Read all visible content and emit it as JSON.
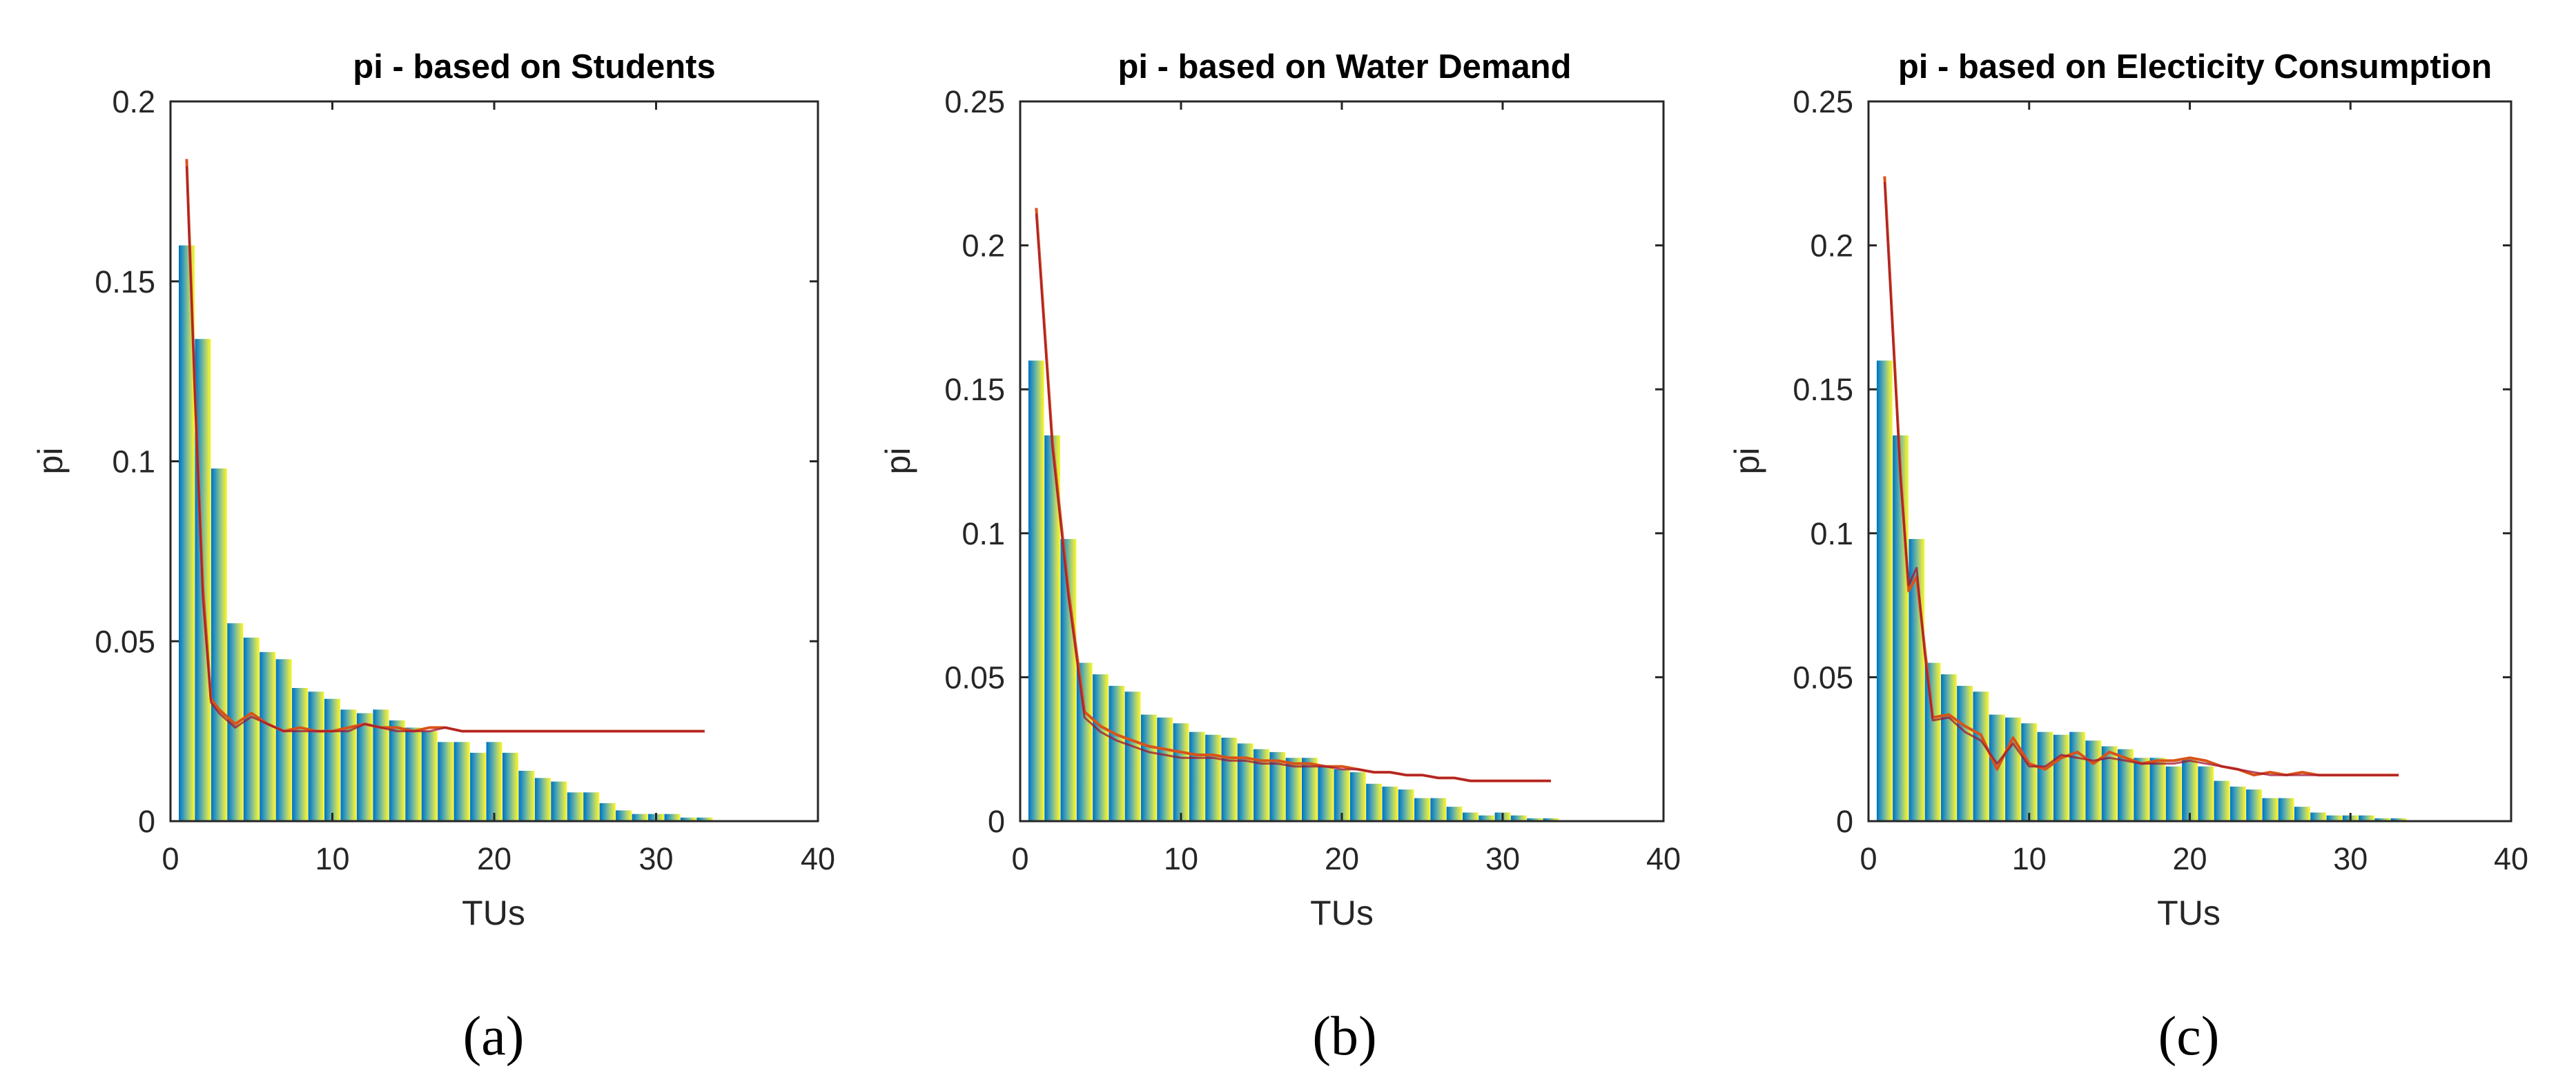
{
  "colors": {
    "bar_shades": [
      "#0072bd",
      "#1a87bf",
      "#3d9cb8",
      "#63b0a4",
      "#8cc38a",
      "#b6d56a",
      "#dde648",
      "#f9f727"
    ],
    "line": "#d95319",
    "line_alt": "#a2142f",
    "axis": "#262626"
  },
  "chart_data": [
    {
      "type": "bar",
      "title": "pi - based on Students",
      "xlabel": "TUs",
      "ylabel": "pi",
      "caption": "(a)",
      "xlim": [
        0,
        40
      ],
      "ylim": [
        0,
        0.2
      ],
      "xticks": [
        0,
        10,
        20,
        30,
        40
      ],
      "yticks": [
        0,
        0.05,
        0.1,
        0.15,
        0.2
      ],
      "ytick_labels": [
        "0",
        "0.05",
        "0.1",
        "0.15",
        "0.2"
      ],
      "x": [
        1,
        2,
        3,
        4,
        5,
        6,
        7,
        8,
        9,
        10,
        11,
        12,
        13,
        14,
        15,
        16,
        17,
        18,
        19,
        20,
        21,
        22,
        23,
        24,
        25,
        26,
        27,
        28,
        29,
        30,
        31,
        32,
        33
      ],
      "values": [
        0.16,
        0.134,
        0.098,
        0.055,
        0.051,
        0.047,
        0.045,
        0.037,
        0.036,
        0.034,
        0.031,
        0.03,
        0.031,
        0.028,
        0.026,
        0.025,
        0.022,
        0.022,
        0.019,
        0.022,
        0.019,
        0.014,
        0.012,
        0.011,
        0.008,
        0.008,
        0.005,
        0.003,
        0.002,
        0.002,
        0.002,
        0.001,
        0.001
      ],
      "series": [
        {
          "name": "line1",
          "x": [
            1,
            1.5,
            2,
            2.5,
            3,
            4,
            5,
            6,
            7,
            8,
            9,
            10,
            11,
            12,
            13,
            14,
            15,
            16,
            17,
            18,
            19,
            20,
            21,
            22,
            23,
            24,
            25,
            26,
            27,
            28,
            29,
            30,
            31,
            32,
            33
          ],
          "y": [
            0.184,
            0.12,
            0.065,
            0.034,
            0.031,
            0.027,
            0.03,
            0.027,
            0.025,
            0.026,
            0.025,
            0.025,
            0.026,
            0.027,
            0.026,
            0.026,
            0.025,
            0.026,
            0.026,
            0.025,
            0.025,
            0.025,
            0.025,
            0.025,
            0.025,
            0.025,
            0.025,
            0.025,
            0.025,
            0.025,
            0.025,
            0.025,
            0.025,
            0.025,
            0.025
          ]
        },
        {
          "name": "line2",
          "x": [
            1,
            1.5,
            2,
            2.5,
            3,
            4,
            5,
            6,
            7,
            8,
            9,
            10,
            11,
            12,
            13,
            14,
            15,
            16,
            17,
            18,
            19,
            20,
            21,
            22,
            23,
            24,
            25,
            26,
            27,
            28,
            29,
            30,
            31,
            32,
            33
          ],
          "y": [
            0.182,
            0.12,
            0.062,
            0.033,
            0.03,
            0.026,
            0.029,
            0.027,
            0.025,
            0.025,
            0.025,
            0.025,
            0.025,
            0.027,
            0.026,
            0.025,
            0.025,
            0.025,
            0.026,
            0.025,
            0.025,
            0.025,
            0.025,
            0.025,
            0.025,
            0.025,
            0.025,
            0.025,
            0.025,
            0.025,
            0.025,
            0.025,
            0.025,
            0.025,
            0.025
          ]
        }
      ]
    },
    {
      "type": "bar",
      "title": "pi - based on Water Demand",
      "xlabel": "TUs",
      "ylabel": "pi",
      "caption": "(b)",
      "xlim": [
        0,
        40
      ],
      "ylim": [
        0,
        0.25
      ],
      "xticks": [
        0,
        10,
        20,
        30,
        40
      ],
      "yticks": [
        0,
        0.05,
        0.1,
        0.15,
        0.2,
        0.25
      ],
      "ytick_labels": [
        "0",
        "0.05",
        "0.1",
        "0.15",
        "0.2",
        "0.25"
      ],
      "x": [
        1,
        2,
        3,
        4,
        5,
        6,
        7,
        8,
        9,
        10,
        11,
        12,
        13,
        14,
        15,
        16,
        17,
        18,
        19,
        20,
        21,
        22,
        23,
        24,
        25,
        26,
        27,
        28,
        29,
        30,
        31,
        32,
        33
      ],
      "values": [
        0.16,
        0.134,
        0.098,
        0.055,
        0.051,
        0.047,
        0.045,
        0.037,
        0.036,
        0.034,
        0.031,
        0.03,
        0.029,
        0.027,
        0.025,
        0.024,
        0.022,
        0.022,
        0.019,
        0.018,
        0.017,
        0.013,
        0.012,
        0.011,
        0.008,
        0.008,
        0.005,
        0.003,
        0.002,
        0.003,
        0.002,
        0.001,
        0.001
      ],
      "series": [
        {
          "name": "line1",
          "x": [
            1,
            2,
            3,
            4,
            5,
            6,
            7,
            8,
            9,
            10,
            11,
            12,
            13,
            14,
            15,
            16,
            17,
            18,
            19,
            20,
            21,
            22,
            23,
            24,
            25,
            26,
            27,
            28,
            29,
            30,
            31,
            32,
            33
          ],
          "y": [
            0.213,
            0.132,
            0.08,
            0.038,
            0.033,
            0.03,
            0.028,
            0.026,
            0.025,
            0.024,
            0.023,
            0.023,
            0.022,
            0.022,
            0.021,
            0.021,
            0.02,
            0.02,
            0.019,
            0.019,
            0.018,
            0.017,
            0.017,
            0.016,
            0.016,
            0.015,
            0.015,
            0.014,
            0.014,
            0.014,
            0.014,
            0.014,
            0.014
          ]
        },
        {
          "name": "line2",
          "x": [
            1,
            2,
            3,
            4,
            5,
            6,
            7,
            8,
            9,
            10,
            11,
            12,
            13,
            14,
            15,
            16,
            17,
            18,
            19,
            20,
            21,
            22,
            23,
            24,
            25,
            26,
            27,
            28,
            29,
            30,
            31,
            32,
            33
          ],
          "y": [
            0.211,
            0.13,
            0.078,
            0.036,
            0.031,
            0.028,
            0.026,
            0.024,
            0.023,
            0.022,
            0.022,
            0.022,
            0.021,
            0.021,
            0.02,
            0.02,
            0.019,
            0.019,
            0.019,
            0.018,
            0.018,
            0.017,
            0.017,
            0.016,
            0.016,
            0.015,
            0.015,
            0.014,
            0.014,
            0.014,
            0.014,
            0.014,
            0.014
          ]
        }
      ]
    },
    {
      "type": "bar",
      "title": "pi - based on Electicity Consumption",
      "xlabel": "TUs",
      "ylabel": "pi",
      "caption": "(c)",
      "xlim": [
        0,
        40
      ],
      "ylim": [
        0,
        0.25
      ],
      "xticks": [
        0,
        10,
        20,
        30,
        40
      ],
      "yticks": [
        0,
        0.05,
        0.1,
        0.15,
        0.2,
        0.25
      ],
      "ytick_labels": [
        "0",
        "0.05",
        "0.1",
        "0.15",
        "0.2",
        "0.25"
      ],
      "x": [
        1,
        2,
        3,
        4,
        5,
        6,
        7,
        8,
        9,
        10,
        11,
        12,
        13,
        14,
        15,
        16,
        17,
        18,
        19,
        20,
        21,
        22,
        23,
        24,
        25,
        26,
        27,
        28,
        29,
        30,
        31,
        32,
        33
      ],
      "values": [
        0.16,
        0.134,
        0.098,
        0.055,
        0.051,
        0.047,
        0.045,
        0.037,
        0.036,
        0.034,
        0.031,
        0.03,
        0.031,
        0.028,
        0.026,
        0.025,
        0.022,
        0.022,
        0.019,
        0.022,
        0.019,
        0.014,
        0.012,
        0.011,
        0.008,
        0.008,
        0.005,
        0.003,
        0.002,
        0.002,
        0.002,
        0.001,
        0.001
      ],
      "series": [
        {
          "name": "line1",
          "x": [
            1,
            2,
            2.5,
            3,
            3.5,
            4,
            5,
            6,
            7,
            8,
            9,
            10,
            11,
            12,
            13,
            14,
            15,
            16,
            17,
            18,
            19,
            20,
            21,
            22,
            23,
            24,
            25,
            26,
            27,
            28,
            29,
            30,
            31,
            32,
            33
          ],
          "y": [
            0.224,
            0.12,
            0.08,
            0.085,
            0.06,
            0.036,
            0.037,
            0.033,
            0.03,
            0.018,
            0.029,
            0.02,
            0.018,
            0.022,
            0.024,
            0.02,
            0.024,
            0.022,
            0.02,
            0.021,
            0.021,
            0.022,
            0.021,
            0.019,
            0.018,
            0.016,
            0.017,
            0.016,
            0.017,
            0.016,
            0.016,
            0.016,
            0.016,
            0.016,
            0.016
          ]
        },
        {
          "name": "line2",
          "x": [
            1,
            2,
            2.5,
            3,
            3.5,
            4,
            5,
            6,
            7,
            8,
            9,
            10,
            11,
            12,
            13,
            14,
            15,
            16,
            17,
            18,
            19,
            20,
            21,
            22,
            23,
            24,
            25,
            26,
            27,
            28,
            29,
            30,
            31,
            32,
            33
          ],
          "y": [
            0.222,
            0.118,
            0.082,
            0.088,
            0.058,
            0.035,
            0.036,
            0.031,
            0.028,
            0.02,
            0.027,
            0.019,
            0.019,
            0.023,
            0.022,
            0.021,
            0.022,
            0.021,
            0.02,
            0.02,
            0.02,
            0.021,
            0.02,
            0.019,
            0.018,
            0.017,
            0.016,
            0.016,
            0.016,
            0.016,
            0.016,
            0.016,
            0.016,
            0.016,
            0.016
          ]
        }
      ]
    }
  ]
}
